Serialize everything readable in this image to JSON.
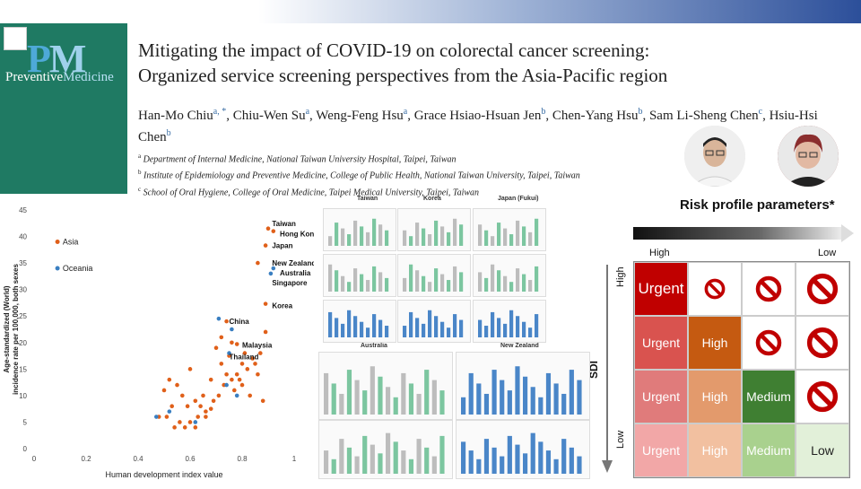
{
  "journal": {
    "name_p": "P",
    "name_m": "M",
    "name_full_a": "Preventive",
    "name_full_b": "Medicine"
  },
  "paper": {
    "title_line1": "Mitigating the impact of COVID-19 on colorectal cancer screening:",
    "title_line2": "Organized service screening perspectives from the Asia-Pacific region",
    "authors": [
      {
        "name": "Han-Mo Chiu",
        "sup": "a, *"
      },
      {
        "name": "Chiu-Wen Su",
        "sup": "a"
      },
      {
        "name": "Weng-Feng Hsu",
        "sup": "a"
      },
      {
        "name": "Grace Hsiao-Hsuan Jen",
        "sup": "b"
      },
      {
        "name": "Chen-Yang Hsu",
        "sup": "b"
      },
      {
        "name": "Sam Li-Sheng Chen",
        "sup": "c"
      },
      {
        "name": "Hsiu-Hsi Chen",
        "sup": "b"
      }
    ],
    "affiliations": [
      {
        "sup": "a",
        "text": "Department of Internal Medicine, National Taiwan University Hospital, Taipei, Taiwan"
      },
      {
        "sup": "b",
        "text": "Institute of Epidemiology and Preventive Medicine, College of Public Health, National Taiwan University, Taipei, Taiwan"
      },
      {
        "sup": "c",
        "text": "School of Oral Hygiene, College of Oral Medicine, Taipei Medical University, Taipei, Taiwan"
      }
    ]
  },
  "risk": {
    "title": "Risk profile parameters*",
    "high_label": "High",
    "low_label": "Low",
    "sdi_label": "SDI",
    "v_high": "High",
    "v_low": "Low",
    "grid": [
      [
        {
          "text": "Urgent",
          "bg": "#c00000"
        },
        {
          "icon": "no"
        },
        {
          "icon": "no"
        },
        {
          "icon": "no"
        }
      ],
      [
        {
          "text": "Urgent",
          "bg": "#d9534f"
        },
        {
          "text": "High",
          "bg": "#c55a11"
        },
        {
          "icon": "no"
        },
        {
          "icon": "no"
        }
      ],
      [
        {
          "text": "Urgent",
          "bg": "#e07b7b"
        },
        {
          "text": "High",
          "bg": "#e39a6c"
        },
        {
          "text": "Medium",
          "bg": "#3f7f32"
        },
        {
          "icon": "no"
        }
      ],
      [
        {
          "text": "Urgent",
          "bg": "#f2a7a7"
        },
        {
          "text": "High",
          "bg": "#f2c0a0"
        },
        {
          "text": "Medium",
          "bg": "#a9d18e"
        },
        {
          "text": "Low",
          "bg": "#e2f0d9",
          "color": "#222"
        }
      ]
    ]
  },
  "chart_data": {
    "type": "scatter",
    "xlabel": "Human development index value",
    "ylabel_line1": "Age-standardized (World)",
    "ylabel_line2": "incidence rate per 100,000, both sexes",
    "xlim": [
      0,
      1
    ],
    "ylim": [
      0,
      45
    ],
    "xticks": [
      "0",
      "0.2",
      "0.4",
      "0.6",
      "0.8",
      "1"
    ],
    "yticks": [
      "0",
      "5",
      "10",
      "15",
      "20",
      "25",
      "30",
      "35",
      "40",
      "45"
    ],
    "legend": [
      {
        "name": "Asia",
        "color": "#e0601a"
      },
      {
        "name": "Oceania",
        "color": "#3a7fc1"
      }
    ],
    "labels": [
      {
        "text": "Taiwan",
        "x": 0.915,
        "y": 42.5
      },
      {
        "text": "Hong Kong",
        "x": 0.945,
        "y": 40.5
      },
      {
        "text": "Japan",
        "x": 0.915,
        "y": 38.3
      },
      {
        "text": "New Zealand",
        "x": 0.915,
        "y": 35
      },
      {
        "text": "Australia",
        "x": 0.945,
        "y": 33.2
      },
      {
        "text": "Singapore",
        "x": 0.915,
        "y": 31.3
      },
      {
        "text": "Korea",
        "x": 0.915,
        "y": 27
      },
      {
        "text": "China",
        "x": 0.75,
        "y": 24
      },
      {
        "text": "Malaysia",
        "x": 0.8,
        "y": 19.5
      },
      {
        "text": "Thailand",
        "x": 0.75,
        "y": 17.3
      }
    ],
    "series": [
      {
        "name": "Asia",
        "points": [
          [
            0.9,
            41.5
          ],
          [
            0.92,
            41
          ],
          [
            0.89,
            38.3
          ],
          [
            0.86,
            35
          ],
          [
            0.89,
            27.3
          ],
          [
            0.74,
            24
          ],
          [
            0.78,
            19.7
          ],
          [
            0.75,
            17.5
          ],
          [
            0.89,
            22
          ],
          [
            0.87,
            18
          ],
          [
            0.84,
            17
          ],
          [
            0.8,
            16
          ],
          [
            0.78,
            14
          ],
          [
            0.76,
            13
          ],
          [
            0.73,
            12
          ],
          [
            0.71,
            10
          ],
          [
            0.69,
            9
          ],
          [
            0.68,
            7.5
          ],
          [
            0.66,
            6
          ],
          [
            0.64,
            8
          ],
          [
            0.62,
            9
          ],
          [
            0.6,
            5
          ],
          [
            0.58,
            4
          ],
          [
            0.56,
            5
          ],
          [
            0.55,
            12
          ],
          [
            0.53,
            8
          ],
          [
            0.51,
            6
          ],
          [
            0.5,
            11
          ],
          [
            0.48,
            6
          ],
          [
            0.52,
            13
          ],
          [
            0.6,
            15
          ],
          [
            0.65,
            10
          ],
          [
            0.7,
            19
          ],
          [
            0.72,
            16
          ],
          [
            0.74,
            14
          ],
          [
            0.77,
            11
          ],
          [
            0.79,
            13
          ],
          [
            0.82,
            15
          ],
          [
            0.85,
            16
          ],
          [
            0.86,
            14
          ],
          [
            0.81,
            18
          ],
          [
            0.76,
            20
          ],
          [
            0.72,
            21
          ],
          [
            0.68,
            13
          ],
          [
            0.63,
            6
          ],
          [
            0.59,
            8
          ],
          [
            0.57,
            10
          ],
          [
            0.54,
            4
          ],
          [
            0.62,
            4
          ],
          [
            0.66,
            7
          ],
          [
            0.8,
            12
          ],
          [
            0.83,
            10
          ],
          [
            0.88,
            9
          ]
        ]
      },
      {
        "name": "Oceania",
        "points": [
          [
            0.92,
            34
          ],
          [
            0.91,
            33
          ],
          [
            0.71,
            24.5
          ],
          [
            0.76,
            22.5
          ],
          [
            0.75,
            18
          ],
          [
            0.74,
            12
          ],
          [
            0.62,
            5
          ],
          [
            0.52,
            7
          ],
          [
            0.47,
            6
          ],
          [
            0.78,
            10
          ]
        ]
      }
    ]
  },
  "mini_charts": {
    "titles": [
      "Taiwan",
      "Korea",
      "Japan (Fukui)",
      "Australia",
      "New Zealand"
    ]
  }
}
